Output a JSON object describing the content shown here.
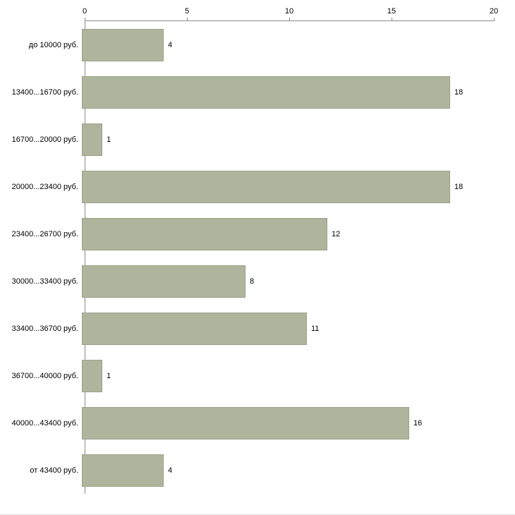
{
  "chart_data": {
    "type": "bar",
    "orientation": "horizontal",
    "title": "",
    "xlabel": "",
    "ylabel": "",
    "categories": [
      "до 10000 руб.",
      "13400...16700 руб.",
      "16700...20000 руб.",
      "20000...23400 руб.",
      "23400...26700 руб.",
      "30000...33400 руб.",
      "33400...36700 руб.",
      "36700...40000 руб.",
      "40000...43400 руб.",
      "от 43400 руб."
    ],
    "values": [
      4,
      18,
      1,
      18,
      12,
      8,
      11,
      1,
      16,
      4
    ],
    "x_ticks": [
      0,
      5,
      10,
      15,
      20
    ],
    "xlim": [
      0,
      20
    ],
    "grid": false,
    "legend_position": "none",
    "axis_position": "top",
    "colors": {
      "bar_fill": "#aeb59c",
      "bar_border": "#9aa186",
      "axis_line": "#8a8a8a",
      "text": "#000000",
      "background": "#ffffff"
    }
  }
}
